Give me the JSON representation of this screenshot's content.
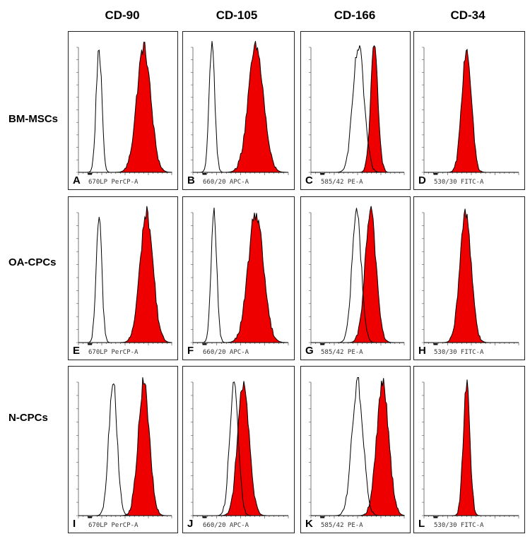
{
  "chart_data": {
    "type": "histogram-grid",
    "columns": [
      "CD-90",
      "CD-105",
      "CD-166",
      "CD-34"
    ],
    "rows": [
      "BM-MSCs",
      "OA-CPCs",
      "N-CPCs"
    ],
    "channel_labels": [
      "670LP PerCP-A",
      "660/20 APC-A",
      "585/42 PE-A",
      "530/30 FITC-A"
    ],
    "colors": {
      "control": "#000000",
      "stained_fill": "#ee0000",
      "stained_edge": "#000000"
    },
    "panels": [
      {
        "letter": "A",
        "row": 0,
        "col": 0,
        "control": {
          "mu": 0.22,
          "sd": 0.03
        },
        "stained": {
          "mu": 0.7,
          "sd": 0.075
        }
      },
      {
        "letter": "B",
        "row": 0,
        "col": 1,
        "control": {
          "mu": 0.2,
          "sd": 0.03
        },
        "stained": {
          "mu": 0.66,
          "sd": 0.08
        }
      },
      {
        "letter": "C",
        "row": 0,
        "col": 2,
        "control": {
          "mu": 0.51,
          "sd": 0.06
        },
        "stained": {
          "mu": 0.68,
          "sd": 0.04
        }
      },
      {
        "letter": "D",
        "row": 0,
        "col": 3,
        "control": null,
        "stained": {
          "mu": 0.45,
          "sd": 0.05
        }
      },
      {
        "letter": "E",
        "row": 1,
        "col": 0,
        "control": {
          "mu": 0.22,
          "sd": 0.03
        },
        "stained": {
          "mu": 0.73,
          "sd": 0.07
        }
      },
      {
        "letter": "F",
        "row": 1,
        "col": 1,
        "control": {
          "mu": 0.22,
          "sd": 0.03
        },
        "stained": {
          "mu": 0.66,
          "sd": 0.08
        }
      },
      {
        "letter": "G",
        "row": 1,
        "col": 2,
        "control": {
          "mu": 0.49,
          "sd": 0.05
        },
        "stained": {
          "mu": 0.64,
          "sd": 0.06
        }
      },
      {
        "letter": "H",
        "row": 1,
        "col": 3,
        "control": null,
        "stained": {
          "mu": 0.44,
          "sd": 0.06
        }
      },
      {
        "letter": "I",
        "row": 2,
        "col": 0,
        "control": {
          "mu": 0.37,
          "sd": 0.045
        },
        "stained": {
          "mu": 0.7,
          "sd": 0.06
        }
      },
      {
        "letter": "J",
        "row": 2,
        "col": 1,
        "control": {
          "mu": 0.43,
          "sd": 0.045
        },
        "stained": {
          "mu": 0.53,
          "sd": 0.06
        }
      },
      {
        "letter": "K",
        "row": 2,
        "col": 2,
        "control": {
          "mu": 0.5,
          "sd": 0.06
        },
        "stained": {
          "mu": 0.77,
          "sd": 0.065
        }
      },
      {
        "letter": "L",
        "row": 2,
        "col": 3,
        "control": null,
        "stained": {
          "mu": 0.45,
          "sd": 0.035
        }
      }
    ]
  }
}
